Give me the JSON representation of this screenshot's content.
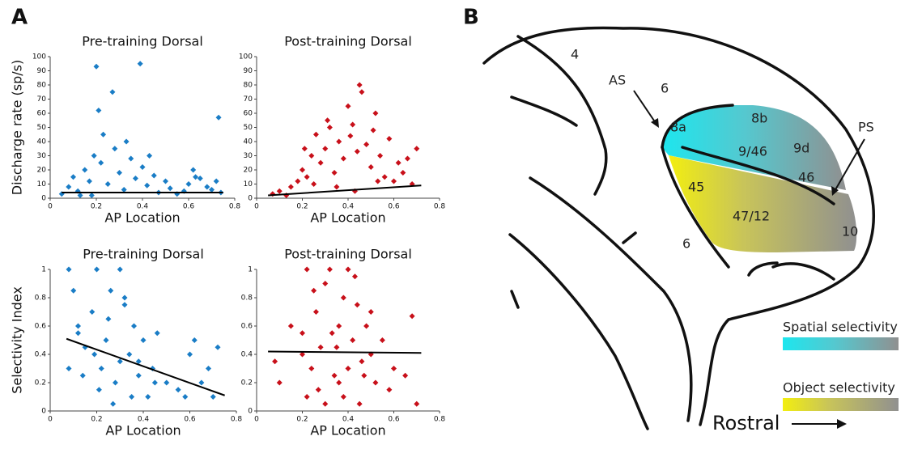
{
  "panels": {
    "a": "A",
    "b": "B"
  },
  "chart_data": [
    {
      "type": "scatter",
      "title": "Pre-training Dorsal",
      "xlabel": "AP Location",
      "ylabel": "Discharge rate (sp/s)",
      "color": "#1a7dc6",
      "x": [
        0.2,
        0.39,
        0.27,
        0.21,
        0.73,
        0.23,
        0.05,
        0.08,
        0.1,
        0.12,
        0.15,
        0.17,
        0.19,
        0.22,
        0.25,
        0.28,
        0.3,
        0.32,
        0.35,
        0.37,
        0.4,
        0.42,
        0.45,
        0.47,
        0.5,
        0.52,
        0.55,
        0.58,
        0.6,
        0.62,
        0.65,
        0.68,
        0.7,
        0.72,
        0.74,
        0.13,
        0.33,
        0.43,
        0.63,
        0.18
      ],
      "values": [
        93,
        95,
        75,
        62,
        57,
        45,
        3,
        8,
        15,
        5,
        20,
        12,
        30,
        25,
        10,
        35,
        18,
        6,
        28,
        14,
        22,
        9,
        16,
        4,
        12,
        7,
        3,
        5,
        10,
        20,
        14,
        8,
        6,
        12,
        4,
        2,
        40,
        30,
        15,
        2
      ],
      "fit": {
        "color": "#000000",
        "x": [
          0.05,
          0.75
        ],
        "values": [
          4,
          4
        ]
      },
      "xlim": [
        0,
        0.8
      ],
      "xticks": [
        0,
        0.2,
        0.4,
        0.6,
        0.8
      ],
      "ylim": [
        0,
        100
      ],
      "yticks": [
        0,
        10,
        20,
        30,
        40,
        50,
        60,
        70,
        80,
        90,
        100
      ]
    },
    {
      "type": "scatter",
      "title": "Post-training Dorsal",
      "xlabel": "AP Location",
      "color": "#c8101a",
      "x": [
        0.45,
        0.46,
        0.4,
        0.52,
        0.07,
        0.1,
        0.13,
        0.15,
        0.18,
        0.2,
        0.22,
        0.24,
        0.26,
        0.28,
        0.3,
        0.32,
        0.34,
        0.36,
        0.38,
        0.42,
        0.44,
        0.48,
        0.5,
        0.54,
        0.56,
        0.58,
        0.6,
        0.62,
        0.64,
        0.66,
        0.68,
        0.7,
        0.25,
        0.35,
        0.43,
        0.53,
        0.31,
        0.41,
        0.21,
        0.51
      ],
      "values": [
        80,
        75,
        65,
        60,
        3,
        5,
        2,
        8,
        12,
        20,
        15,
        30,
        45,
        25,
        35,
        50,
        18,
        40,
        28,
        52,
        33,
        38,
        22,
        30,
        15,
        42,
        12,
        25,
        18,
        28,
        10,
        35,
        10,
        8,
        5,
        12,
        55,
        44,
        35,
        48
      ],
      "fit": {
        "color": "#000000",
        "x": [
          0.05,
          0.72
        ],
        "values": [
          2,
          9
        ]
      },
      "xlim": [
        0,
        0.8
      ],
      "xticks": [
        0,
        0.2,
        0.4,
        0.6,
        0.8
      ],
      "ylim": [
        0,
        100
      ],
      "yticks": [
        0,
        10,
        20,
        30,
        40,
        50,
        60,
        70,
        80,
        90,
        100
      ]
    },
    {
      "type": "scatter",
      "title": "Pre-training Dorsal",
      "xlabel": "AP Location",
      "ylabel": "Selectivity Index",
      "color": "#1a7dc6",
      "x": [
        0.08,
        0.1,
        0.12,
        0.15,
        0.18,
        0.2,
        0.22,
        0.24,
        0.26,
        0.28,
        0.3,
        0.32,
        0.34,
        0.36,
        0.38,
        0.4,
        0.42,
        0.44,
        0.46,
        0.5,
        0.55,
        0.6,
        0.62,
        0.65,
        0.68,
        0.7,
        0.72,
        0.08,
        0.21,
        0.3,
        0.32,
        0.14,
        0.25,
        0.35,
        0.19,
        0.27,
        0.45,
        0.58,
        0.38,
        0.12
      ],
      "values": [
        1,
        0.85,
        0.6,
        0.45,
        0.7,
        1,
        0.3,
        0.5,
        0.85,
        0.2,
        1,
        0.75,
        0.4,
        0.6,
        0.25,
        0.5,
        0.1,
        0.3,
        0.55,
        0.2,
        0.15,
        0.4,
        0.5,
        0.2,
        0.3,
        0.1,
        0.45,
        0.3,
        0.15,
        0.35,
        0.8,
        0.25,
        0.65,
        0.1,
        0.4,
        0.05,
        0.2,
        0.1,
        0.35,
        0.55
      ],
      "fit": {
        "color": "#000000",
        "x": [
          0.07,
          0.75
        ],
        "values": [
          0.51,
          0.11
        ]
      },
      "xlim": [
        0,
        0.8
      ],
      "xticks": [
        0,
        0.2,
        0.4,
        0.6,
        0.8
      ],
      "ylim": [
        0,
        1
      ],
      "yticks": [
        0,
        0.2,
        0.4,
        0.6,
        0.8,
        1
      ]
    },
    {
      "type": "scatter",
      "title": "Post-training Dorsal",
      "xlabel": "AP Location",
      "color": "#c8101a",
      "x": [
        0.08,
        0.1,
        0.15,
        0.2,
        0.22,
        0.24,
        0.26,
        0.28,
        0.3,
        0.32,
        0.34,
        0.36,
        0.38,
        0.4,
        0.42,
        0.44,
        0.46,
        0.48,
        0.5,
        0.52,
        0.55,
        0.58,
        0.6,
        0.65,
        0.68,
        0.7,
        0.22,
        0.25,
        0.35,
        0.4,
        0.43,
        0.3,
        0.38,
        0.27,
        0.47,
        0.33,
        0.45,
        0.2,
        0.5,
        0.36
      ],
      "values": [
        0.35,
        0.2,
        0.6,
        0.55,
        1,
        0.3,
        0.7,
        0.45,
        0.9,
        1,
        0.25,
        0.6,
        0.1,
        1,
        0.5,
        0.75,
        0.35,
        0.6,
        0.4,
        0.2,
        0.5,
        0.15,
        0.3,
        0.25,
        0.67,
        0.05,
        0.1,
        0.85,
        0.45,
        0.3,
        0.95,
        0.05,
        0.8,
        0.15,
        0.25,
        0.55,
        0.05,
        0.4,
        0.7,
        0.2
      ],
      "fit": {
        "color": "#000000",
        "x": [
          0.05,
          0.72
        ],
        "values": [
          0.42,
          0.41
        ]
      },
      "xlim": [
        0,
        0.8
      ],
      "xticks": [
        0,
        0.2,
        0.4,
        0.6,
        0.8
      ],
      "ylim": [
        0,
        1
      ],
      "yticks": [
        0,
        0.2,
        0.4,
        0.6,
        0.8,
        1
      ]
    }
  ],
  "diagram": {
    "labels": [
      "4",
      "AS",
      "6",
      "8a",
      "8b",
      "9/46",
      "9d",
      "46",
      "PS",
      "45",
      "47/12",
      "10",
      "6"
    ],
    "legend": [
      "Spatial selectivity",
      "Object selectivity"
    ],
    "direction": "Rostral"
  }
}
